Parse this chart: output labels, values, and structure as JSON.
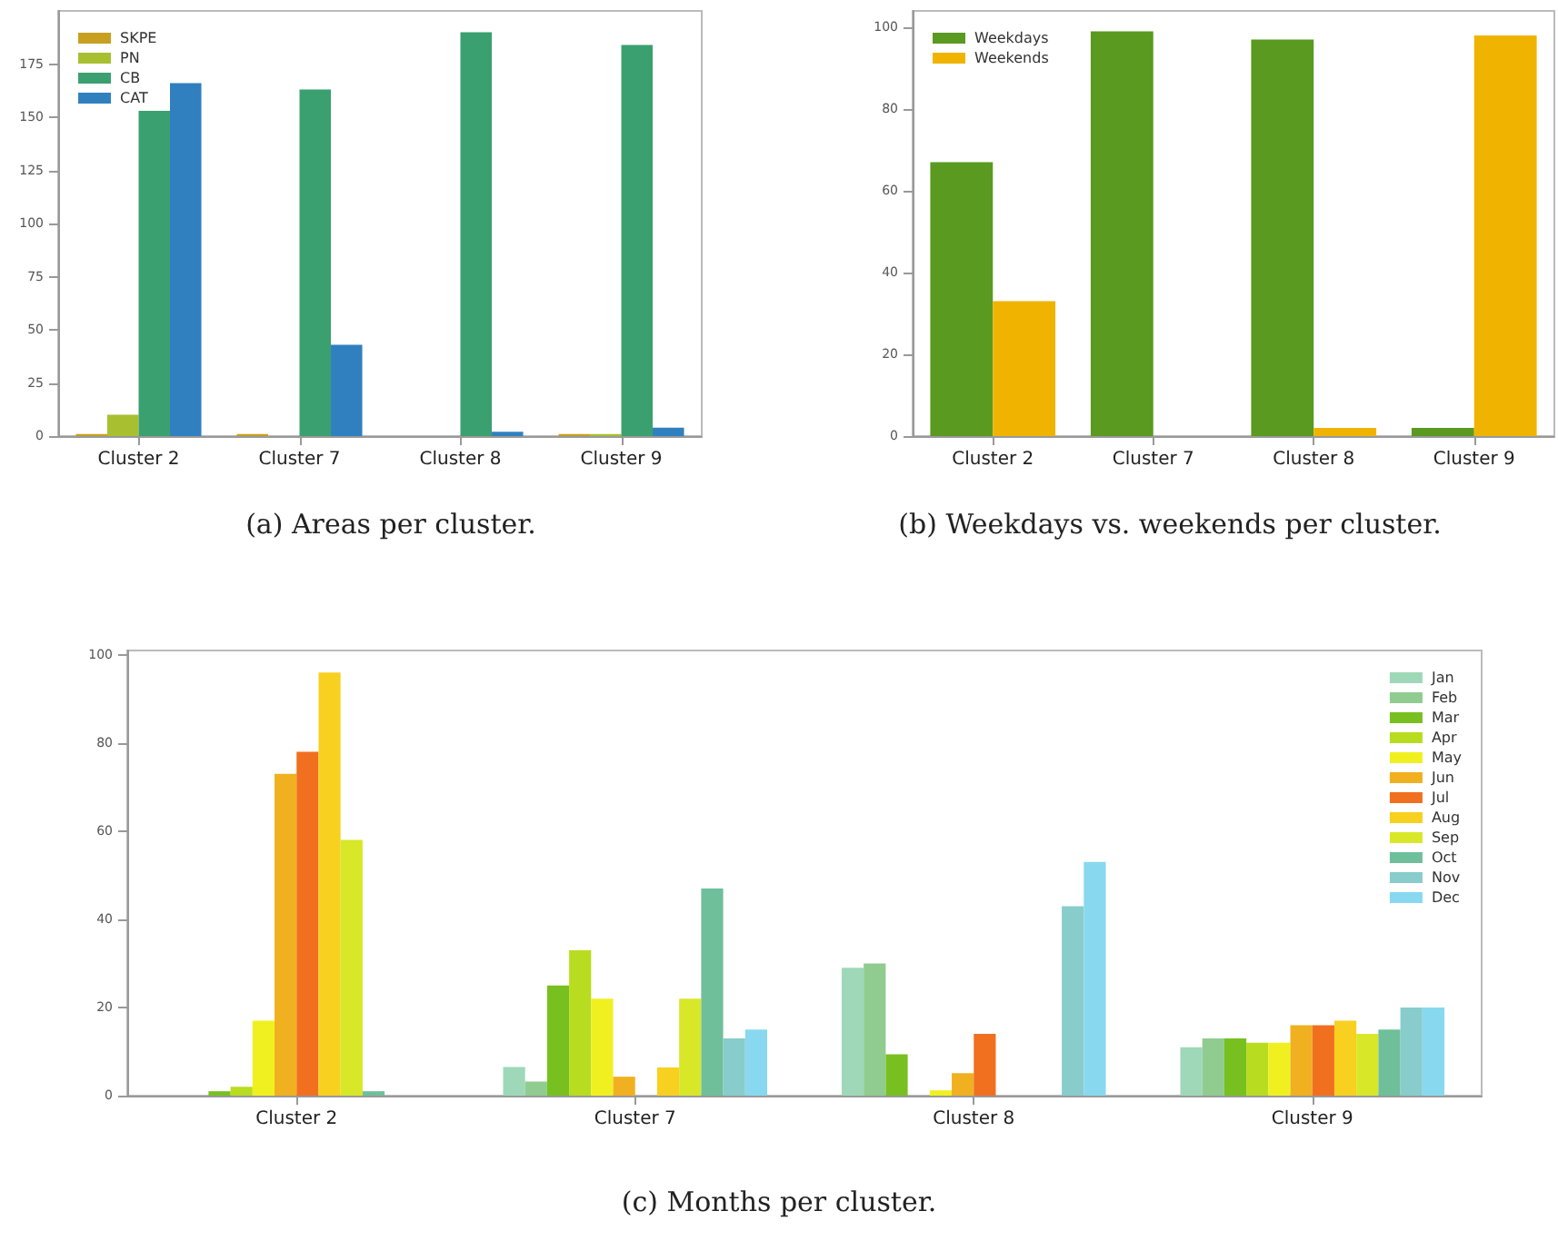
{
  "chart_data": [
    {
      "type": "bar",
      "categories": [
        "Cluster 2",
        "Cluster 7",
        "Cluster 8",
        "Cluster 9"
      ],
      "ylim": [
        0,
        200
      ],
      "yticks": [
        0,
        25,
        50,
        75,
        100,
        125,
        150,
        175
      ],
      "grid": false,
      "legend": "top left",
      "annotations": [
        "(a) Areas per cluster."
      ],
      "series": [
        {
          "name": "SKPE",
          "color": "#c8a020",
          "values": [
            1,
            1,
            0,
            1
          ]
        },
        {
          "name": "PN",
          "color": "#a8c030",
          "values": [
            10,
            0,
            0,
            1
          ]
        },
        {
          "name": "CB",
          "color": "#3aa070",
          "values": [
            153,
            163,
            190,
            184
          ]
        },
        {
          "name": "CAT",
          "color": "#3080c0",
          "values": [
            166,
            43,
            2,
            4
          ]
        }
      ]
    },
    {
      "type": "bar",
      "categories": [
        "Cluster 2",
        "Cluster 7",
        "Cluster 8",
        "Cluster 9"
      ],
      "ylim": [
        0,
        104
      ],
      "yticks": [
        0,
        20,
        40,
        60,
        80,
        100
      ],
      "grid": false,
      "legend": "top left",
      "annotations": [
        "(b) Weekdays vs. weekends per cluster."
      ],
      "series": [
        {
          "name": "Weekdays",
          "color": "#5a9a20",
          "values": [
            67,
            99,
            97,
            2
          ]
        },
        {
          "name": "Weekends",
          "color": "#f0b400",
          "values": [
            33,
            0,
            2,
            98
          ]
        }
      ]
    },
    {
      "type": "bar",
      "categories": [
        "Cluster 2",
        "Cluster 7",
        "Cluster 8",
        "Cluster 9"
      ],
      "ylim": [
        0,
        101
      ],
      "yticks": [
        0,
        20,
        40,
        60,
        80,
        100
      ],
      "grid": false,
      "legend": "top right",
      "annotations": [
        "(c) Months per cluster."
      ],
      "series": [
        {
          "name": "Jan",
          "color": "#9ed8b8",
          "values": [
            0,
            6.5,
            29,
            11
          ]
        },
        {
          "name": "Feb",
          "color": "#90cc90",
          "values": [
            0,
            3.2,
            30,
            13
          ]
        },
        {
          "name": "Mar",
          "color": "#78c020",
          "values": [
            1,
            25,
            9.4,
            13
          ]
        },
        {
          "name": "Apr",
          "color": "#b8dc20",
          "values": [
            2,
            33,
            0,
            12
          ]
        },
        {
          "name": "May",
          "color": "#f0f020",
          "values": [
            17,
            22,
            1.2,
            12
          ]
        },
        {
          "name": "Jun",
          "color": "#f0b020",
          "values": [
            73,
            4.3,
            5.1,
            16
          ]
        },
        {
          "name": "Jul",
          "color": "#f07020",
          "values": [
            78,
            0,
            14,
            16
          ]
        },
        {
          "name": "Aug",
          "color": "#f8d020",
          "values": [
            96,
            6.4,
            0,
            17
          ]
        },
        {
          "name": "Sep",
          "color": "#d8e828",
          "values": [
            58,
            22,
            0,
            14
          ]
        },
        {
          "name": "Oct",
          "color": "#6fbf9a",
          "values": [
            1,
            47,
            0,
            15
          ]
        },
        {
          "name": "Nov",
          "color": "#88cccc",
          "values": [
            0,
            13,
            43,
            20
          ]
        },
        {
          "name": "Dec",
          "color": "#88d8f0",
          "values": [
            0,
            15,
            53,
            20
          ]
        }
      ]
    }
  ]
}
